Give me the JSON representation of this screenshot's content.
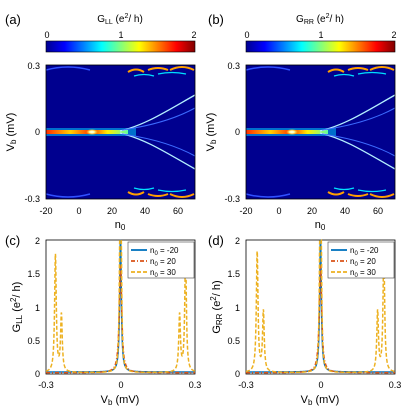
{
  "panels": {
    "a": {
      "label": "(a)",
      "colorbar": {
        "title_main": "G",
        "title_sub": "LL",
        "title_rest": " (e",
        "title_sup": "2",
        "title_end": "/ h)",
        "ticks": [
          "0",
          "1",
          "2"
        ]
      },
      "ylabel_main": "V",
      "ylabel_sub": "b",
      "ylabel_rest": " (mV)",
      "xlabel_main": "n",
      "xlabel_sub": "0",
      "yticks": [
        "0.3",
        "0",
        "-0.3"
      ],
      "xticks": [
        "-20",
        "0",
        "20",
        "40",
        "60"
      ]
    },
    "b": {
      "label": "(b)",
      "colorbar": {
        "title_main": "G",
        "title_sub": "RR",
        "title_rest": " (e",
        "title_sup": "2",
        "title_end": "/ h)",
        "ticks": [
          "0",
          "1",
          "2"
        ]
      },
      "ylabel_main": "V",
      "ylabel_sub": "b",
      "ylabel_rest": " (mV)",
      "xlabel_main": "n",
      "xlabel_sub": "0",
      "yticks": [
        "0.3",
        "0",
        "-0.3"
      ],
      "xticks": [
        "-20",
        "0",
        "20",
        "40",
        "60"
      ]
    },
    "c": {
      "label": "(c)",
      "ylabel_main": "G",
      "ylabel_sub": "LL",
      "ylabel_rest": " (e",
      "ylabel_sup": "2",
      "ylabel_end": "/ h)",
      "xlabel_main": "V",
      "xlabel_sub": "b",
      "xlabel_rest": " (mV)",
      "yticks": [
        "2",
        "1.5",
        "1",
        "0.5",
        "0"
      ],
      "xticks": [
        "-0.3",
        "0",
        "0.3"
      ],
      "legend": [
        {
          "pre": "n",
          "sub": "0",
          "post": " = -20"
        },
        {
          "pre": "n",
          "sub": "0",
          "post": " = 20"
        },
        {
          "pre": "n",
          "sub": "0",
          "post": " = 30"
        }
      ]
    },
    "d": {
      "label": "(d)",
      "ylabel_main": "G",
      "ylabel_sub": "RR",
      "ylabel_rest": " (e",
      "ylabel_sup": "2",
      "ylabel_end": "/ h)",
      "xlabel_main": "V",
      "xlabel_sub": "b",
      "xlabel_rest": " (mV)",
      "yticks": [
        "2",
        "1.5",
        "1",
        "0.5",
        "0"
      ],
      "xticks": [
        "-0.3",
        "0",
        "0.3"
      ],
      "legend": [
        {
          "pre": "n",
          "sub": "0",
          "post": " = -20"
        },
        {
          "pre": "n",
          "sub": "0",
          "post": " = 20"
        },
        {
          "pre": "n",
          "sub": "0",
          "post": " = 30"
        }
      ]
    }
  },
  "colors": {
    "series_n0_m20": "#0072bd",
    "series_n0_20": "#d95319",
    "series_n0_30": "#edb120",
    "colormap": "jet"
  },
  "chart_data": [
    {
      "type": "heatmap",
      "panel": "a",
      "x_label": "n0",
      "y_label": "Vb (mV)",
      "xlim": [
        -20,
        70
      ],
      "ylim": [
        -0.3,
        0.3
      ],
      "clim": [
        0,
        2
      ],
      "colormap": "jet",
      "features": {
        "zero_bias_peak": {
          "n0_range": [
            -20,
            25
          ],
          "vb": 0,
          "value": 2,
          "width": 0.006
        },
        "bright_spot": {
          "n0": 10,
          "vb": 0,
          "value": 2
        },
        "split_branches": {
          "n0_start": 20,
          "n0_end": 70,
          "vb_at_end": 0.24
        },
        "edge_resonances": {
          "n0_range": [
            20,
            70
          ],
          "vb": [
            0.25,
            0.29
          ]
        }
      }
    },
    {
      "type": "heatmap",
      "panel": "b",
      "x_label": "n0",
      "y_label": "Vb (mV)",
      "xlim": [
        -20,
        70
      ],
      "ylim": [
        -0.3,
        0.3
      ],
      "clim": [
        0,
        2
      ],
      "colormap": "jet",
      "features": {
        "zero_bias_peak": {
          "n0_range": [
            -20,
            25
          ],
          "vb": 0,
          "value": 2,
          "width": 0.006
        },
        "bright_spot": {
          "n0": 10,
          "vb": 0,
          "value": 2
        },
        "split_branches": {
          "n0_start": 20,
          "n0_end": 70,
          "vb_at_end": 0.24
        },
        "edge_resonances": {
          "n0_range": [
            20,
            70
          ],
          "vb": [
            0.25,
            0.29
          ]
        }
      }
    },
    {
      "type": "line",
      "panel": "c",
      "xlim": [
        -0.3,
        0.3
      ],
      "ylim": [
        0,
        2
      ],
      "series": [
        {
          "name": "n0 = -20",
          "style": "solid",
          "peaks": [
            {
              "x": 0,
              "height": 2,
              "width": 0.004
            }
          ],
          "baseline": 0.03
        },
        {
          "name": "n0 = 20",
          "style": "dashdot",
          "peaks": [
            {
              "x": 0,
              "height": 1.6,
              "width": 0.006
            }
          ],
          "baseline": 0.02
        },
        {
          "name": "n0 = 30",
          "style": "dashed",
          "peaks": [
            {
              "x": -0.002,
              "height": 2,
              "width": 0.003
            },
            {
              "x": 0.002,
              "height": 2,
              "width": 0.003
            },
            {
              "x": -0.262,
              "height": 1.75,
              "width": 0.004
            },
            {
              "x": -0.238,
              "height": 0.85,
              "width": 0.004
            },
            {
              "x": 0.262,
              "height": 1.75,
              "width": 0.004
            },
            {
              "x": 0.238,
              "height": 0.85,
              "width": 0.004
            }
          ],
          "baseline": 0.02
        }
      ]
    },
    {
      "type": "line",
      "panel": "d",
      "xlim": [
        -0.3,
        0.3
      ],
      "ylim": [
        0,
        2
      ],
      "series": [
        {
          "name": "n0 = -20",
          "style": "solid",
          "peaks": [
            {
              "x": 0,
              "height": 2,
              "width": 0.004
            }
          ],
          "baseline": 0.03
        },
        {
          "name": "n0 = 20",
          "style": "dashdot",
          "peaks": [
            {
              "x": 0,
              "height": 1.6,
              "width": 0.006
            }
          ],
          "baseline": 0.02
        },
        {
          "name": "n0 = 30",
          "style": "dashed",
          "peaks": [
            {
              "x": -0.002,
              "height": 2,
              "width": 0.003
            },
            {
              "x": 0.002,
              "height": 2,
              "width": 0.003
            },
            {
              "x": -0.255,
              "height": 1.8,
              "width": 0.004
            },
            {
              "x": -0.23,
              "height": 0.9,
              "width": 0.004
            },
            {
              "x": 0.255,
              "height": 1.8,
              "width": 0.004
            },
            {
              "x": 0.23,
              "height": 0.9,
              "width": 0.004
            }
          ],
          "baseline": 0.02
        }
      ]
    }
  ]
}
